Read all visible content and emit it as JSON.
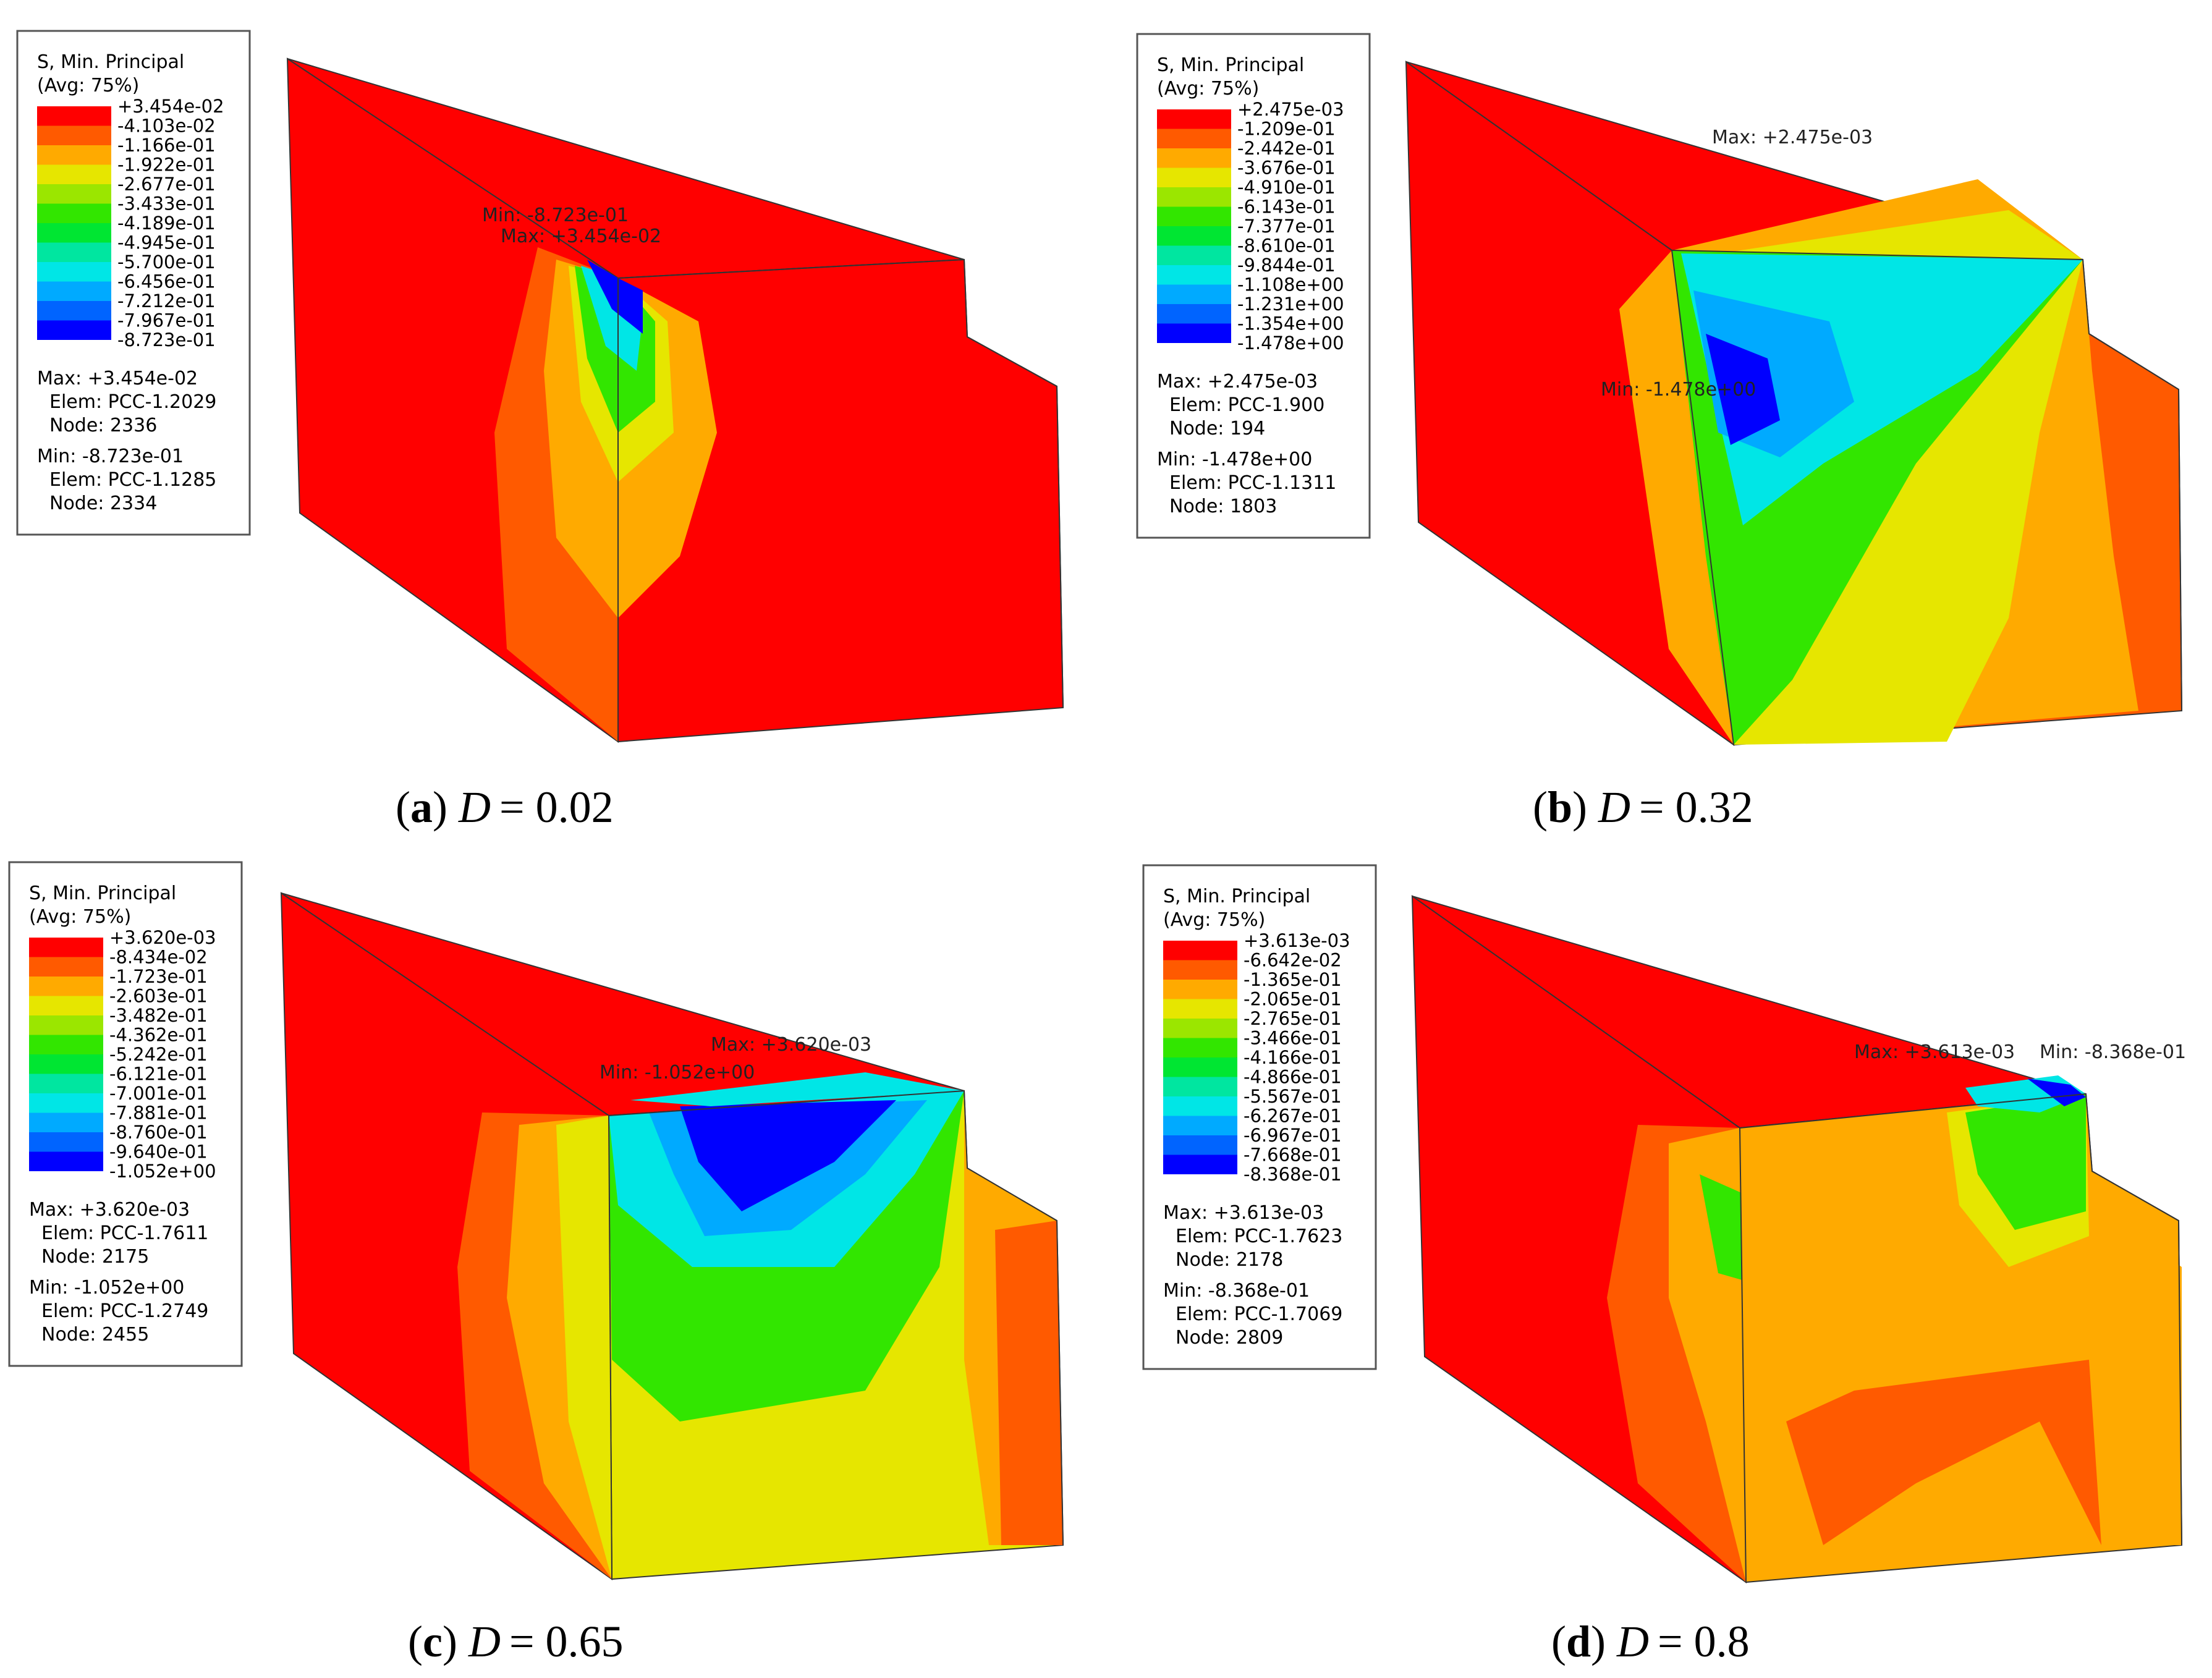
{
  "palette": [
    "#ff0000",
    "#ff5a00",
    "#ffaa00",
    "#e6e600",
    "#9be600",
    "#32e600",
    "#00e632",
    "#00e6a0",
    "#00e6e6",
    "#00aaff",
    "#0064ff",
    "#0000ff"
  ],
  "panels": [
    {
      "legend": {
        "title": "S, Min. Principal",
        "avg": "(Avg: 75%)",
        "ticks": [
          "+3.454e-02",
          "-4.103e-02",
          "-1.166e-01",
          "-1.922e-01",
          "-2.677e-01",
          "-3.433e-01",
          "-4.189e-01",
          "-4.945e-01",
          "-5.700e-01",
          "-6.456e-01",
          "-7.212e-01",
          "-7.967e-01",
          "-8.723e-01"
        ],
        "max": {
          "label": "Max: +3.454e-02",
          "elem": "Elem: PCC-1.2029",
          "node": "Node: 2336"
        },
        "min": {
          "label": "Min: -8.723e-01",
          "elem": "Elem: PCC-1.1285",
          "node": "Node: 2334"
        }
      },
      "annotations": [
        "Min: -8.723e-01",
        "Max: +3.454e-02"
      ],
      "caption": {
        "letter": "a",
        "symbol": "D",
        "value": "= 0.02"
      }
    },
    {
      "legend": {
        "title": "S, Min. Principal",
        "avg": "(Avg: 75%)",
        "ticks": [
          "+2.475e-03",
          "-1.209e-01",
          "-2.442e-01",
          "-3.676e-01",
          "-4.910e-01",
          "-6.143e-01",
          "-7.377e-01",
          "-8.610e-01",
          "-9.844e-01",
          "-1.108e+00",
          "-1.231e+00",
          "-1.354e+00",
          "-1.478e+00"
        ],
        "max": {
          "label": "Max: +2.475e-03",
          "elem": "Elem: PCC-1.900",
          "node": "Node: 194"
        },
        "min": {
          "label": "Min: -1.478e+00",
          "elem": "Elem: PCC-1.1311",
          "node": "Node: 1803"
        }
      },
      "annotations": [
        "Max: +2.475e-03",
        "Min: -1.478e+00"
      ],
      "caption": {
        "letter": "b",
        "symbol": "D",
        "value": "= 0.32"
      }
    },
    {
      "legend": {
        "title": "S, Min. Principal",
        "avg": "(Avg: 75%)",
        "ticks": [
          "+3.620e-03",
          "-8.434e-02",
          "-1.723e-01",
          "-2.603e-01",
          "-3.482e-01",
          "-4.362e-01",
          "-5.242e-01",
          "-6.121e-01",
          "-7.001e-01",
          "-7.881e-01",
          "-8.760e-01",
          "-9.640e-01",
          "-1.052e+00"
        ],
        "max": {
          "label": "Max: +3.620e-03",
          "elem": "Elem: PCC-1.7611",
          "node": "Node: 2175"
        },
        "min": {
          "label": "Min: -1.052e+00",
          "elem": "Elem: PCC-1.2749",
          "node": "Node: 2455"
        }
      },
      "annotations": [
        "Max: +3.620e-03",
        "Min: -1.052e+00"
      ],
      "caption": {
        "letter": "c",
        "symbol": "D",
        "value": "= 0.65"
      }
    },
    {
      "legend": {
        "title": "S, Min. Principal",
        "avg": "(Avg: 75%)",
        "ticks": [
          "+3.613e-03",
          "-6.642e-02",
          "-1.365e-01",
          "-2.065e-01",
          "-2.765e-01",
          "-3.466e-01",
          "-4.166e-01",
          "-4.866e-01",
          "-5.567e-01",
          "-6.267e-01",
          "-6.967e-01",
          "-7.668e-01",
          "-8.368e-01"
        ],
        "max": {
          "label": "Max: +3.613e-03",
          "elem": "Elem: PCC-1.7623",
          "node": "Node: 2178"
        },
        "min": {
          "label": "Min: -8.368e-01",
          "elem": "Elem: PCC-1.7069",
          "node": "Node: 2809"
        }
      },
      "annotations": [
        "Max: +3.613e-03",
        "Min: -8.368e-01"
      ],
      "caption": {
        "letter": "d",
        "symbol": "D",
        "value": "= 0.8"
      }
    }
  ]
}
